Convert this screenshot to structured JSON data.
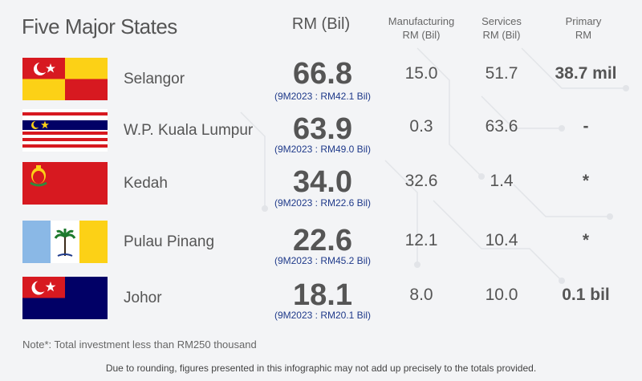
{
  "title": "Five Major States",
  "headers": {
    "rm": "RM (Bil)",
    "manufacturing_line1": "Manufacturing",
    "manufacturing_line2": "RM (Bil)",
    "services_line1": "Services",
    "services_line2": "RM (Bil)",
    "primary_line1": "Primary",
    "primary_line2": "RM"
  },
  "chart_data": {
    "type": "table",
    "title": "Five Major States",
    "columns": [
      "RM (Bil)",
      "Manufacturing RM (Bil)",
      "Services RM (Bil)",
      "Primary RM"
    ],
    "rows": [
      {
        "state": "Selangor",
        "total": "66.8",
        "comparison": "(9M2023 : RM42.1 Bil)",
        "manufacturing": "15.0",
        "services": "51.7",
        "primary": "38.7 mil"
      },
      {
        "state": "W.P. Kuala Lumpur",
        "total": "63.9",
        "comparison": "(9M2023 : RM49.0 Bil)",
        "manufacturing": "0.3",
        "services": "63.6",
        "primary": "-"
      },
      {
        "state": "Kedah",
        "total": "34.0",
        "comparison": "(9M2023 : RM22.6 Bil)",
        "manufacturing": "32.6",
        "services": "1.4",
        "primary": "*"
      },
      {
        "state": "Pulau Pinang",
        "total": "22.6",
        "comparison": "(9M2023 : RM45.2 Bil)",
        "manufacturing": "12.1",
        "services": "10.4",
        "primary": "*"
      },
      {
        "state": "Johor",
        "total": "18.1",
        "comparison": "(9M2023 : RM20.1 Bil)",
        "manufacturing": "8.0",
        "services": "10.0",
        "primary": "0.1 bil"
      }
    ]
  },
  "note": "Note*: Total investment less than RM250 thousand",
  "footer": "Due to rounding, figures presented in this infographic may not add up precisely to the totals provided.",
  "colors": {
    "background": "#f3f4f6",
    "text": "#555555",
    "comparison_text": "#1f3a8a",
    "flag_red": "#d71920",
    "flag_yellow": "#fcd116",
    "flag_blue": "#010066",
    "penang_blue": "#8ab8e6"
  },
  "flag_icons": [
    "selangor-flag-icon",
    "kuala-lumpur-flag-icon",
    "kedah-flag-icon",
    "penang-flag-icon",
    "johor-flag-icon"
  ]
}
